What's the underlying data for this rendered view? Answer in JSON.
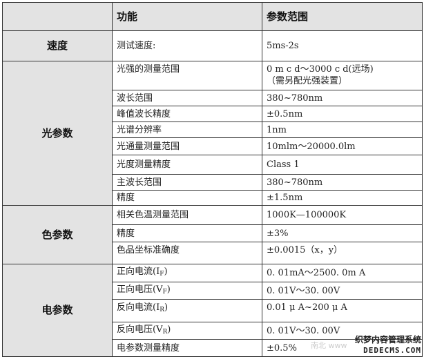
{
  "header": {
    "category": "",
    "function": "功能",
    "range": "参数范围"
  },
  "sections": [
    {
      "category": "速度",
      "rows": [
        {
          "function": "测试速度:",
          "range": "5ms-2s"
        }
      ]
    },
    {
      "category": "光参数",
      "rows": [
        {
          "function": "光强的测量范围",
          "range": "0 m c d～3000 c d(远场)",
          "range2": "（需另配光强装置）"
        },
        {
          "function": "波长范围",
          "range": "380~780nm"
        },
        {
          "function": "峰值波长精度",
          "range": "±0.5nm"
        },
        {
          "function": "光谱分辨率",
          "range": "1nm"
        },
        {
          "function": "光通量测量范围",
          "range": "10mlm～20000.0lm"
        },
        {
          "function": "光度测量精度",
          "range": "Class 1"
        },
        {
          "function": "主波长范围",
          "range": "380~780nm"
        },
        {
          "function": "精度",
          "range": "±1.5nm"
        }
      ]
    },
    {
      "category": "色参数",
      "rows": [
        {
          "function": "相关色温测量范围",
          "range": "1000K—100000K"
        },
        {
          "function": "精度",
          "range": "±3%"
        },
        {
          "function": "色品坐标准确度",
          "range": "±0.0015（x，y）"
        }
      ]
    },
    {
      "category": "电参数",
      "rows": [
        {
          "function": "正向电流(I",
          "sub": "F",
          "function_end": ")",
          "range": "0. 01mA～2500. 0m A"
        },
        {
          "function": "正向电压(V",
          "sub": "F",
          "function_end": ")",
          "range": "0. 01V～30. 00V"
        },
        {
          "function": "反向电流(I",
          "sub": "R",
          "function_end": ")",
          "range": "0.01 μ A~200 μ A"
        },
        {
          "function": "反向电压(V",
          "sub": "R",
          "function_end": ")",
          "range": "0. 01V～30. 00V"
        },
        {
          "function": "电参数测量精度",
          "range": "±0.5%"
        }
      ]
    }
  ],
  "watermark": {
    "line1": "织梦内容管理系统",
    "line2": "DEDECMS.COM",
    "faint": "南北 www"
  }
}
